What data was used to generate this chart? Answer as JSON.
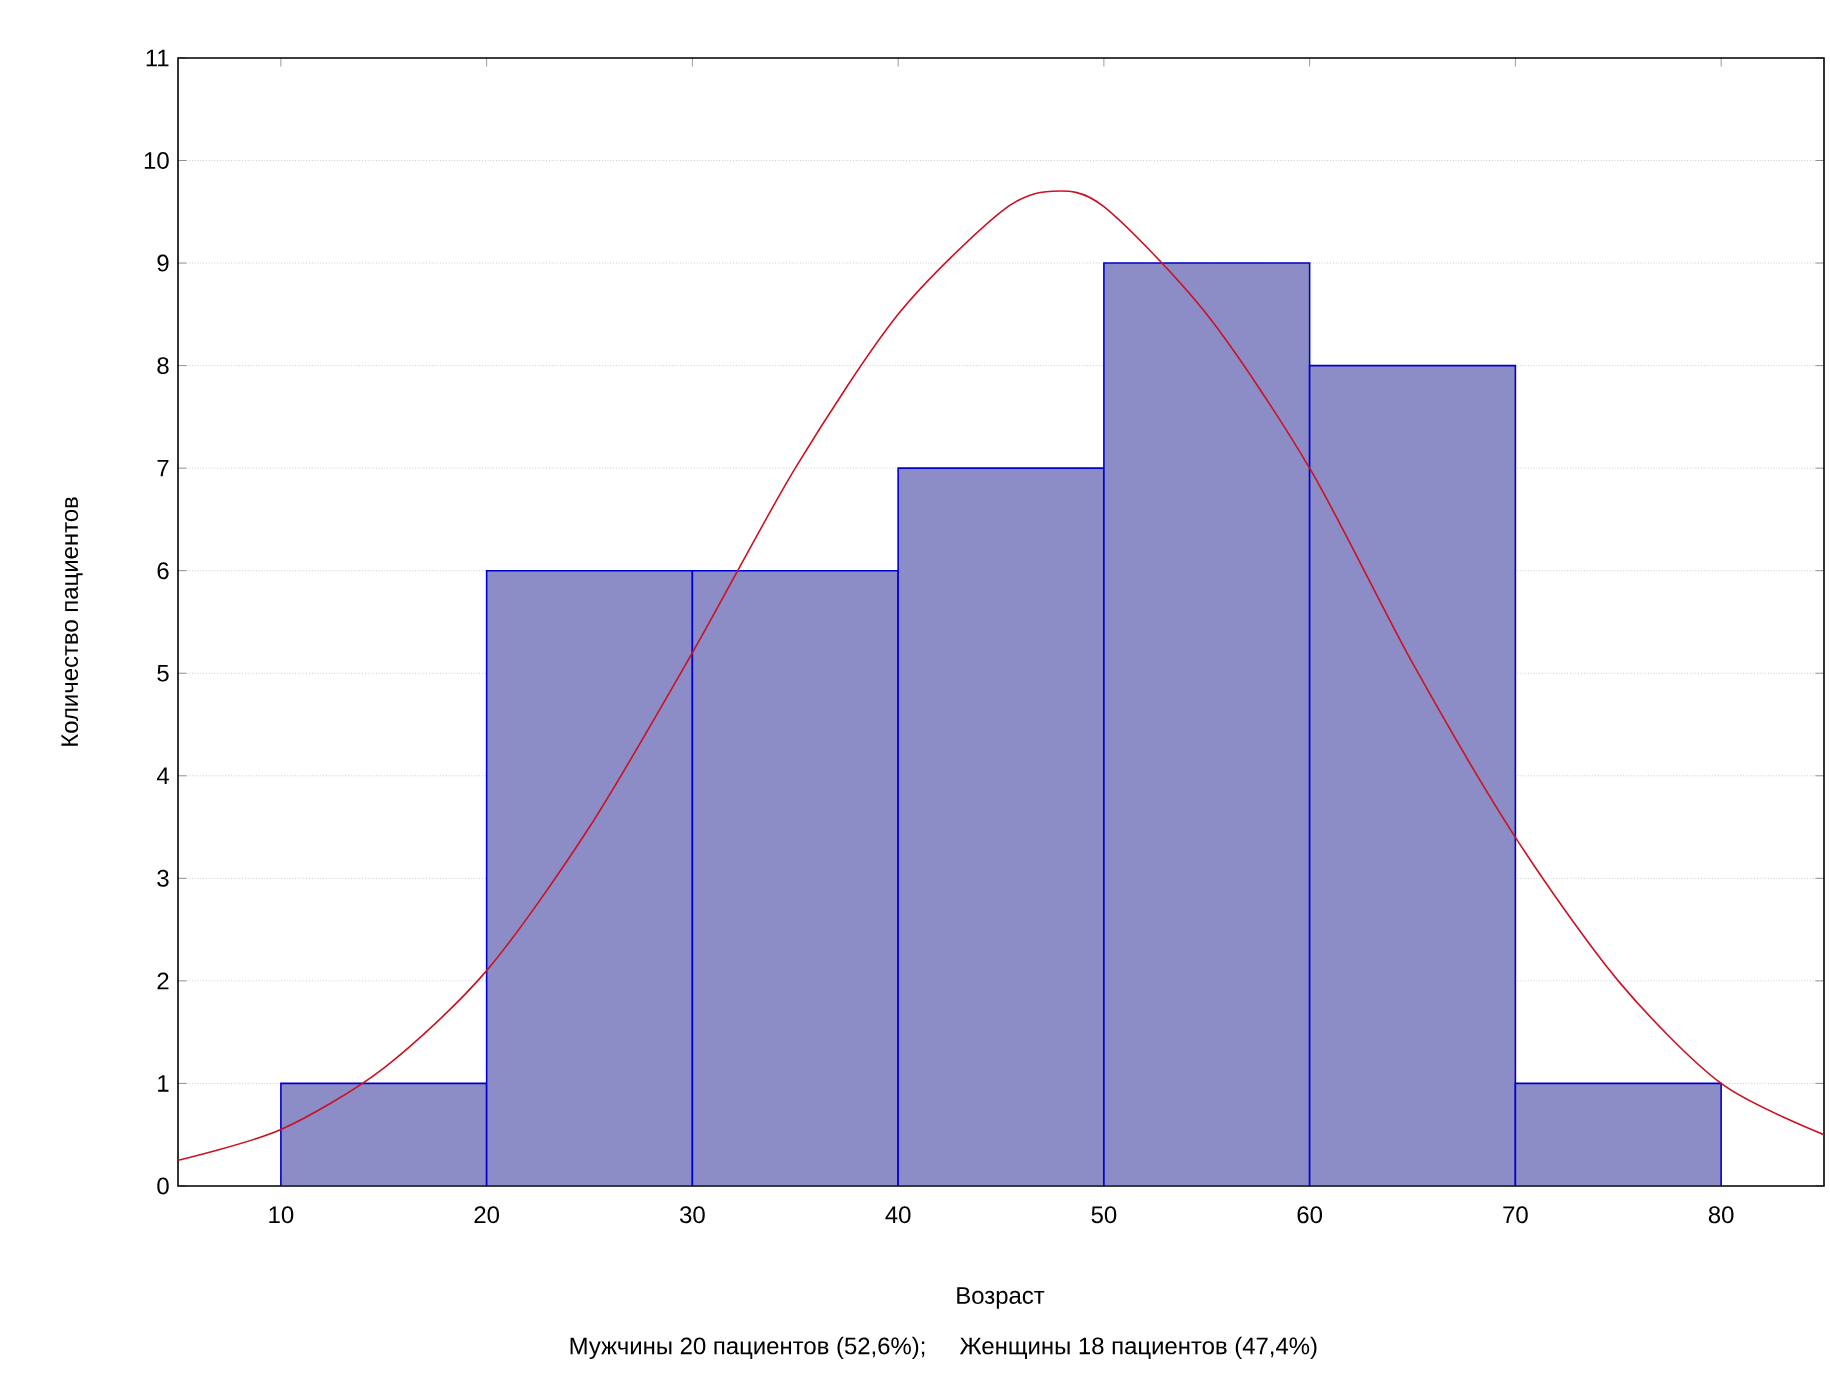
{
  "chart_data": {
    "type": "histogram",
    "xlabel": "Возраст",
    "ylabel": "Количество пациентов",
    "annotations": [
      "Мужчины 20 пациентов (52,6%);     Женщины 18 пациентов (47,4%)"
    ],
    "bins": [
      10,
      20,
      30,
      40,
      50,
      60,
      70,
      80
    ],
    "series": [
      {
        "color": "#8c8cc6",
        "values": [
          1,
          6,
          6,
          7,
          9,
          8,
          1
        ]
      },
      {
        "type": "line",
        "color": "#cc1122",
        "x": [
          5,
          10,
          15,
          20,
          25,
          30,
          35,
          40,
          45,
          47.5,
          50,
          55,
          60,
          65,
          70,
          75,
          80,
          85
        ],
        "values": [
          0.25,
          0.55,
          1.15,
          2.1,
          3.5,
          5.2,
          7.0,
          8.5,
          9.5,
          9.7,
          9.55,
          8.5,
          7.0,
          5.1,
          3.4,
          2.0,
          1.0,
          0.5
        ]
      }
    ],
    "xlim": [
      5,
      85
    ],
    "ylim": [
      0,
      11
    ],
    "xticks": [
      10,
      20,
      30,
      40,
      50,
      60,
      70,
      80
    ],
    "yticks": [
      0,
      1,
      2,
      3,
      4,
      5,
      6,
      7,
      8,
      9,
      10,
      11
    ],
    "grid": "y"
  }
}
